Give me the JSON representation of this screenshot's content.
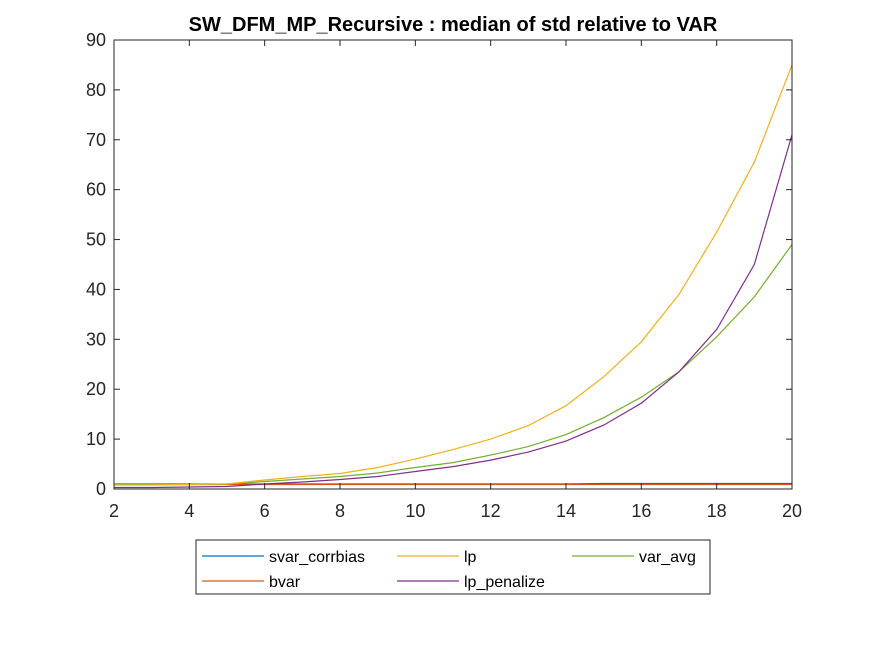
{
  "chart_data": {
    "type": "line",
    "title": "SW_DFM_MP_Recursive : median of std relative to VAR",
    "xlabel": "",
    "ylabel": "",
    "xlim": [
      2,
      20
    ],
    "ylim": [
      0,
      90
    ],
    "xticks": [
      2,
      4,
      6,
      8,
      10,
      12,
      14,
      16,
      18,
      20
    ],
    "yticks": [
      0,
      10,
      20,
      30,
      40,
      50,
      60,
      70,
      80,
      90
    ],
    "grid": false,
    "legend_position": "bottom-outside",
    "x": [
      2,
      3,
      4,
      5,
      6,
      7,
      8,
      9,
      10,
      11,
      12,
      13,
      14,
      15,
      16,
      17,
      18,
      19,
      20
    ],
    "series": [
      {
        "name": "svar_corrbias",
        "color": "#0072BD",
        "values": [
          1,
          1,
          1,
          1,
          1,
          1,
          1,
          1,
          1,
          1,
          1,
          1,
          1,
          1.1,
          1.1,
          1.1,
          1.1,
          1.1,
          1.1
        ]
      },
      {
        "name": "bvar",
        "color": "#D95319",
        "values": [
          0.9,
          0.9,
          0.9,
          0.9,
          0.9,
          0.9,
          0.9,
          0.9,
          0.9,
          0.9,
          0.9,
          0.9,
          0.9,
          0.9,
          0.9,
          0.9,
          0.9,
          0.9,
          0.9
        ]
      },
      {
        "name": "lp",
        "color": "#EDB120",
        "values": [
          0.8,
          0.8,
          0.9,
          1.0,
          1.8,
          2.5,
          3.1,
          4.3,
          6.0,
          7.9,
          10.0,
          12.7,
          16.7,
          22.5,
          29.5,
          39.0,
          51.5,
          65.5,
          85.0
        ]
      },
      {
        "name": "lp_penalize",
        "color": "#7E2F8E",
        "values": [
          0.3,
          0.3,
          0.4,
          0.5,
          1.0,
          1.4,
          1.9,
          2.5,
          3.5,
          4.5,
          5.8,
          7.4,
          9.6,
          12.8,
          17.2,
          23.5,
          32.0,
          45.0,
          71.0
        ]
      },
      {
        "name": "var_avg",
        "color": "#77AC30",
        "values": [
          0.9,
          0.9,
          0.9,
          1.0,
          1.5,
          2.0,
          2.5,
          3.2,
          4.3,
          5.3,
          6.8,
          8.5,
          10.9,
          14.3,
          18.4,
          23.5,
          30.5,
          38.5,
          49.0
        ]
      }
    ],
    "legend_layout": [
      [
        "svar_corrbias",
        "lp",
        "var_avg"
      ],
      [
        "bvar",
        "lp_penalize"
      ]
    ]
  }
}
